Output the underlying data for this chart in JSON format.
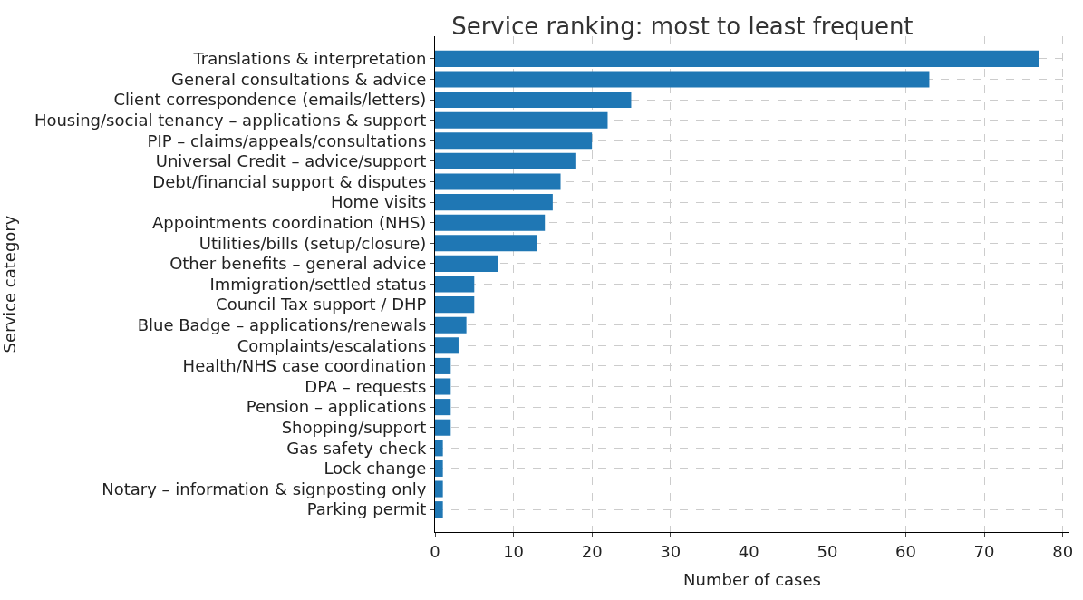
{
  "chart_data": {
    "type": "bar",
    "orientation": "horizontal",
    "title": "Service ranking: most to least frequent",
    "xlabel": "Number of cases",
    "ylabel": "Service category",
    "categories": [
      "Translations & interpretation",
      "General consultations & advice",
      "Client correspondence (emails/letters)",
      "Housing/social tenancy – applications & support",
      "PIP – claims/appeals/consultations",
      "Universal Credit – advice/support",
      "Debt/financial support & disputes",
      "Home visits",
      "Appointments coordination (NHS)",
      "Utilities/bills (setup/closure)",
      "Other benefits – general advice",
      "Immigration/settled status",
      "Council Tax support / DHP",
      "Blue Badge – applications/renewals",
      "Complaints/escalations",
      "Health/NHS case coordination",
      "DPA – requests",
      "Pension – applications",
      "Shopping/support",
      "Gas safety check",
      "Lock change",
      "Notary – information & signposting only",
      "Parking permit"
    ],
    "values": [
      77,
      63,
      25,
      22,
      20,
      18,
      16,
      15,
      14,
      13,
      8,
      5,
      5,
      4,
      3,
      2,
      2,
      2,
      2,
      1,
      1,
      1,
      1
    ],
    "color": "#1f77b4",
    "xlim": [
      0,
      80.85
    ],
    "xticks": [
      0,
      10,
      20,
      30,
      40,
      50,
      60,
      70,
      80
    ],
    "grid": true
  }
}
